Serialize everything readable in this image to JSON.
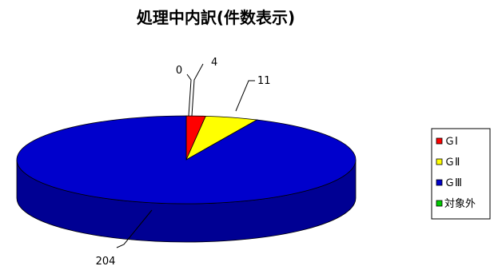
{
  "chart_data": {
    "type": "pie",
    "title": "処理中内訳(件数表示)",
    "categories": [
      "ＧⅠ",
      "ＧⅡ",
      "ＧⅢ",
      "対象外"
    ],
    "values": [
      4,
      11,
      204,
      0
    ],
    "colors": [
      "#ff0000",
      "#ffff00",
      "#0000cc",
      "#00cc00"
    ],
    "three_d": true,
    "legend_position": "right"
  }
}
